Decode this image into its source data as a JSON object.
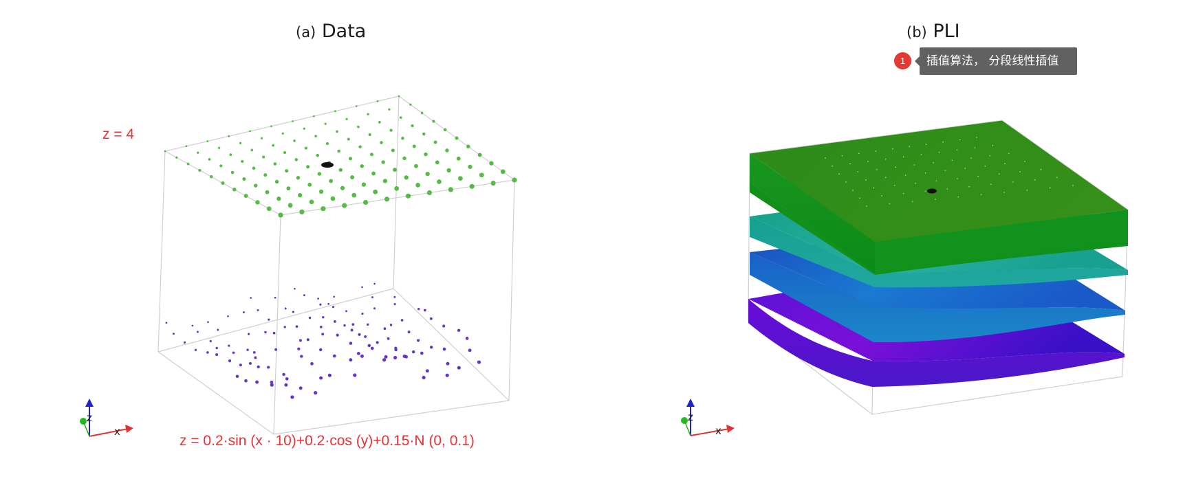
{
  "panels": [
    {
      "tag": "(a)",
      "title": "Data"
    },
    {
      "tag": "(b)",
      "title": "PLI"
    }
  ],
  "annotations": {
    "top_surface_label": "z = 4",
    "bottom_surface_formula": "z = 0.2·sin (x · 10)+0.2·cos (y)+0.15·N (0, 0.1)"
  },
  "marker": {
    "number": "1",
    "tooltip": "插值算法， 分段线性插值"
  },
  "axes": {
    "x_label": "x",
    "z_label": "z"
  },
  "colors": {
    "top_points": "#55bb44",
    "bottom_points": "#6633cc",
    "annotation_red": "#f03030",
    "layer_top": "#2e8b1c",
    "layer_2": "#1a9620",
    "layer_3": "#15a088",
    "layer_4": "#1a66c8",
    "layer_bottom": "#6a0ad8",
    "marker_red": "#e53935",
    "tooltip_bg": "#616161"
  }
}
